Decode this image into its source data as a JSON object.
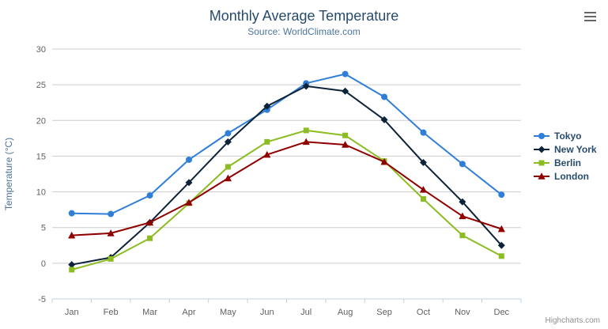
{
  "toolbar": {
    "export_icon": "hamburger-icon"
  },
  "credits": {
    "text": "Highcharts.com"
  },
  "chart_data": {
    "type": "line",
    "title": "Monthly Average Temperature",
    "subtitle": "Source: WorldClimate.com",
    "categories": [
      "Jan",
      "Feb",
      "Mar",
      "Apr",
      "May",
      "Jun",
      "Jul",
      "Aug",
      "Sep",
      "Oct",
      "Nov",
      "Dec"
    ],
    "xlabel": "",
    "ylabel": "Temperature (°C)",
    "ylim": [
      -5,
      30
    ],
    "yticks": [
      -5,
      0,
      5,
      10,
      15,
      20,
      25,
      30
    ],
    "grid": true,
    "legend_position": "right",
    "colors": {
      "title": "#274b6d",
      "subtitle": "#4d759e",
      "axis_labels": "#606060",
      "gridline": "#cccccc",
      "axis_line": "#c0d0e0"
    },
    "series": [
      {
        "name": "Tokyo",
        "color": "#2f7ed8",
        "marker": "circle",
        "values": [
          7.0,
          6.9,
          9.5,
          14.5,
          18.2,
          21.5,
          25.2,
          26.5,
          23.3,
          18.3,
          13.9,
          9.6
        ]
      },
      {
        "name": "New York",
        "color": "#0d233a",
        "marker": "diamond",
        "values": [
          -0.2,
          0.8,
          5.7,
          11.3,
          17.0,
          22.0,
          24.8,
          24.1,
          20.1,
          14.1,
          8.6,
          2.5
        ]
      },
      {
        "name": "Berlin",
        "color": "#8bbc21",
        "marker": "square",
        "values": [
          -0.9,
          0.6,
          3.5,
          8.4,
          13.5,
          17.0,
          18.6,
          17.9,
          14.3,
          9.0,
          3.9,
          1.0
        ]
      },
      {
        "name": "London",
        "color": "#910000",
        "marker": "triangle",
        "values": [
          3.9,
          4.2,
          5.7,
          8.5,
          11.9,
          15.2,
          17.0,
          16.6,
          14.2,
          10.3,
          6.6,
          4.8
        ]
      }
    ]
  }
}
